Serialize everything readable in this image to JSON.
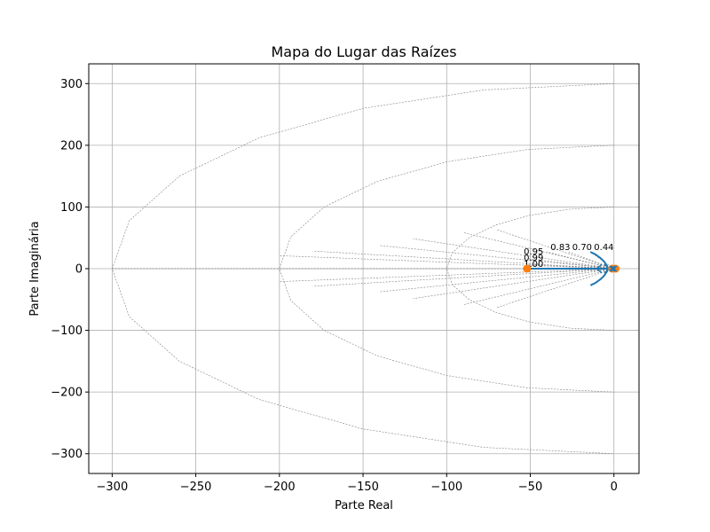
{
  "chart_data": {
    "type": "line",
    "title": "Mapa do Lugar das Raízes",
    "xlabel": "Parte Real",
    "ylabel": "Parte Imaginária",
    "xlim": [
      -314,
      15
    ],
    "ylim": [
      -332,
      332
    ],
    "xticks": [
      -300,
      -250,
      -200,
      -150,
      -100,
      -50,
      0
    ],
    "xtick_labels": [
      "−300",
      "−250",
      "−200",
      "−150",
      "−100",
      "−50",
      "0"
    ],
    "yticks": [
      -300,
      -200,
      -100,
      0,
      100,
      200,
      300
    ],
    "ytick_labels": [
      "−300",
      "−200",
      "−100",
      "0",
      "100",
      "200",
      "300"
    ],
    "grid": true,
    "colors": {
      "locus": "#1f77b4",
      "marker": "#ff7f0e",
      "grid": "#b0b0b0",
      "sgrid": "#808080"
    },
    "wn_circles": [
      100,
      200,
      300
    ],
    "zeta_rays": [
      {
        "zeta": 0.44,
        "end": [
          -14,
          27
        ]
      },
      {
        "zeta": 0.7,
        "end": [
          -27,
          27
        ]
      },
      {
        "zeta": 0.83,
        "end": [
          -40,
          27
        ]
      },
      {
        "zeta": 0.95,
        "end": [
          -51,
          16
        ]
      },
      {
        "zeta": 0.99,
        "end": [
          -52,
          7
        ]
      },
      {
        "zeta": 1.0,
        "end": [
          -52,
          0
        ]
      }
    ],
    "zeta_labels": [
      {
        "text": "0.44",
        "x": -6,
        "y": 30
      },
      {
        "text": "0.70",
        "x": -19,
        "y": 30
      },
      {
        "text": "0.83",
        "x": -32,
        "y": 30
      },
      {
        "text": "0.95",
        "x": -48,
        "y": 23
      },
      {
        "text": "0.99",
        "x": -48,
        "y": 13
      },
      {
        "text": "1.00",
        "x": -48,
        "y": 3
      }
    ],
    "series": [
      {
        "type": "locus",
        "x": [
          -14,
          -11,
          -8,
          -6,
          -5,
          -4,
          -4
        ],
        "y": [
          27,
          23,
          17,
          12,
          8,
          4,
          0
        ]
      },
      {
        "type": "locus",
        "x": [
          -14,
          -11,
          -8,
          -6,
          -5,
          -4,
          -4
        ],
        "y": [
          -27,
          -23,
          -17,
          -12,
          -8,
          -4,
          0
        ]
      },
      {
        "type": "locus",
        "x": [
          -52,
          -40,
          -30,
          -20,
          -12,
          -4
        ],
        "y": [
          0,
          0,
          0,
          0,
          0,
          0
        ]
      },
      {
        "type": "locus",
        "x": [
          0,
          -1,
          -2,
          -3,
          -4
        ],
        "y": [
          0,
          0,
          0,
          0,
          0
        ]
      }
    ],
    "poles": [
      {
        "x": 0,
        "y": 0
      },
      {
        "x": -1,
        "y": 0
      }
    ],
    "markers": [
      {
        "x": -52,
        "y": 0
      },
      {
        "x": -1,
        "y": 0
      },
      {
        "x": 1,
        "y": 0
      }
    ],
    "arrows": [
      {
        "x": -10,
        "y": 0,
        "dir": "left"
      },
      {
        "x": -3,
        "y": 0,
        "dir": "right"
      }
    ]
  }
}
